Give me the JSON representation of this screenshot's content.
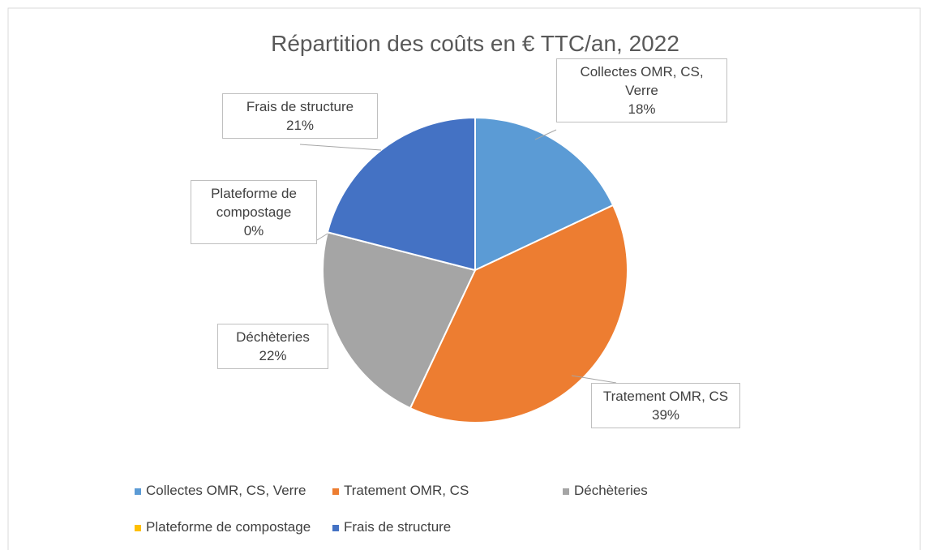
{
  "chart_data": {
    "type": "pie",
    "title": "Répartition des coûts en € TTC/an, 2022",
    "categories": [
      "Collectes OMR, CS, Verre",
      "Tratement OMR, CS",
      "Déchèteries",
      "Plateforme de compostage",
      "Frais de structure"
    ],
    "values": [
      18,
      39,
      22,
      0,
      21
    ],
    "value_labels": [
      "18%",
      "39%",
      "22%",
      "0%",
      "21%"
    ],
    "colors": [
      "#5b9bd5",
      "#ed7d31",
      "#a5a5a5",
      "#ffc000",
      "#4472c4"
    ],
    "legend": "bottom"
  }
}
